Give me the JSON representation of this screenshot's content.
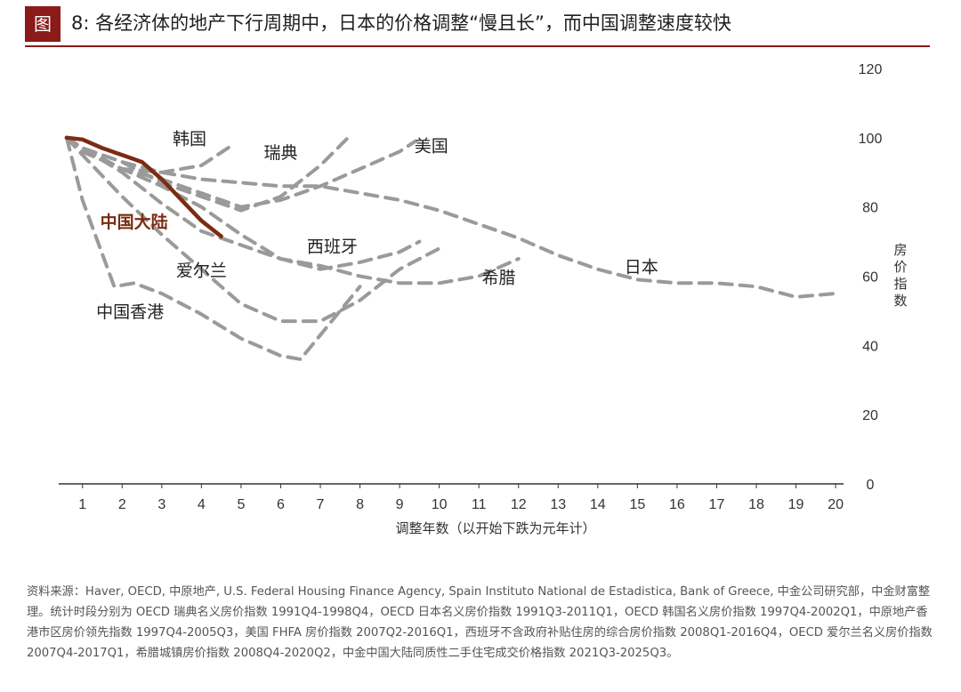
{
  "figure": {
    "label": "图",
    "title": "8: 各经济体的地产下行周期中，日本的价格调整“慢且长”，而中国调整速度较快"
  },
  "chart_data": {
    "type": "line",
    "xlabel": "调整年数（以开始下跌为元年计）",
    "ylabel": "房价指数",
    "xlim": [
      0.4,
      20.2
    ],
    "ylim": [
      0,
      120
    ],
    "x_ticks": [
      "1",
      "2",
      "3",
      "4",
      "5",
      "6",
      "7",
      "8",
      "9",
      "10",
      "11",
      "12",
      "13",
      "14",
      "15",
      "16",
      "17",
      "18",
      "19",
      "20"
    ],
    "y_ticks": [
      "0",
      "20",
      "40",
      "60",
      "80",
      "100",
      "120"
    ],
    "series": [
      {
        "name": "日本",
        "style": "dashed",
        "color": "#9a9a9a",
        "x": [
          0.6,
          1,
          2,
          3,
          4,
          5,
          6,
          7,
          8,
          9,
          10,
          11,
          12,
          13,
          14,
          15,
          16,
          17,
          18,
          19,
          20
        ],
        "y": [
          100,
          97,
          93,
          90,
          88,
          87,
          86,
          86,
          84,
          82,
          79,
          75,
          71,
          66,
          62,
          59,
          58,
          58,
          57,
          54,
          55
        ],
        "label_pos": [
          15.1,
          61
        ]
      },
      {
        "name": "韩国",
        "style": "dashed",
        "color": "#9a9a9a",
        "x": [
          0.6,
          1,
          2,
          3,
          4,
          4.8
        ],
        "y": [
          100,
          97,
          91,
          90,
          92,
          98
        ],
        "label_pos": [
          3.7,
          98
        ]
      },
      {
        "name": "瑞典",
        "style": "dashed",
        "color": "#9a9a9a",
        "x": [
          0.6,
          1,
          2,
          3,
          4,
          5,
          6,
          7,
          7.7
        ],
        "y": [
          100,
          97,
          93,
          87,
          83,
          79,
          83,
          92,
          100
        ],
        "label_pos": [
          6,
          94
        ]
      },
      {
        "name": "美国",
        "style": "dashed",
        "color": "#9a9a9a",
        "x": [
          0.6,
          1,
          2,
          3,
          4,
          5,
          6,
          7,
          8,
          9,
          9.4
        ],
        "y": [
          100,
          96,
          91,
          88,
          84,
          80,
          82,
          86,
          91,
          96,
          99
        ],
        "label_pos": [
          9.8,
          96
        ]
      },
      {
        "name": "西班牙",
        "style": "dashed",
        "color": "#9a9a9a",
        "x": [
          0.6,
          1,
          2,
          3,
          4,
          5,
          6,
          7,
          8,
          9,
          9.5
        ],
        "y": [
          100,
          96,
          91,
          86,
          80,
          72,
          65,
          62,
          64,
          67,
          70
        ],
        "label_pos": [
          7.3,
          67
        ]
      },
      {
        "name": "希腊",
        "style": "dashed",
        "color": "#9a9a9a",
        "x": [
          0.6,
          1,
          2,
          3,
          4,
          5,
          6,
          7,
          8,
          9,
          10,
          11,
          12
        ],
        "y": [
          100,
          97,
          90,
          81,
          73,
          69,
          65,
          63,
          60,
          58,
          58,
          60,
          65
        ],
        "label_pos": [
          11.5,
          58
        ]
      },
      {
        "name": "爱尔兰",
        "style": "dashed",
        "color": "#9a9a9a",
        "x": [
          0.6,
          1,
          2,
          3,
          4,
          5,
          6,
          7,
          8,
          9,
          10
        ],
        "y": [
          100,
          95,
          83,
          72,
          62,
          52,
          47,
          47,
          53,
          62,
          68
        ],
        "label_pos": [
          4,
          60
        ]
      },
      {
        "name": "中国香港",
        "style": "dashed",
        "color": "#9a9a9a",
        "x": [
          0.6,
          1,
          1.8,
          2.3,
          3,
          4,
          5,
          6,
          6.5,
          7,
          8
        ],
        "y": [
          100,
          82,
          57,
          58,
          55,
          49,
          42,
          37,
          36,
          43,
          57
        ],
        "label_pos": [
          2.2,
          48
        ]
      },
      {
        "name": "中国大陆",
        "style": "solid",
        "color": "#7a2c12",
        "x": [
          0.6,
          1,
          1.5,
          2,
          2.5,
          3,
          3.5,
          4,
          4.5
        ],
        "y": [
          100,
          99.5,
          97,
          95,
          93,
          88,
          82,
          76,
          71.5
        ],
        "label_pos": [
          2.3,
          74
        ]
      }
    ]
  },
  "source": {
    "text": "资料来源：Haver, OECD, 中原地产, U.S. Federal Housing Finance Agency, Spain Instituto National de Estadistica, Bank of Greece, 中金公司研究部，中金财富整理。统计时段分别为 OECD 瑞典名义房价指数 1991Q4-1998Q4，OECD 日本名义房价指数 1991Q3-2011Q1，OECD 韩国名义房价指数 1997Q4-2002Q1，中原地产香港市区房价领先指数 1997Q4-2005Q3，美国 FHFA 房价指数 2007Q2-2016Q1，西班牙不含政府补贴住房的综合房价指数 2008Q1-2016Q4，OECD 爱尔兰名义房价指数 2007Q4-2017Q1，希腊城镇房价指数 2008Q4-2020Q2，中金中国大陆同质性二手住宅成交价格指数 2021Q3-2025Q3。"
  }
}
